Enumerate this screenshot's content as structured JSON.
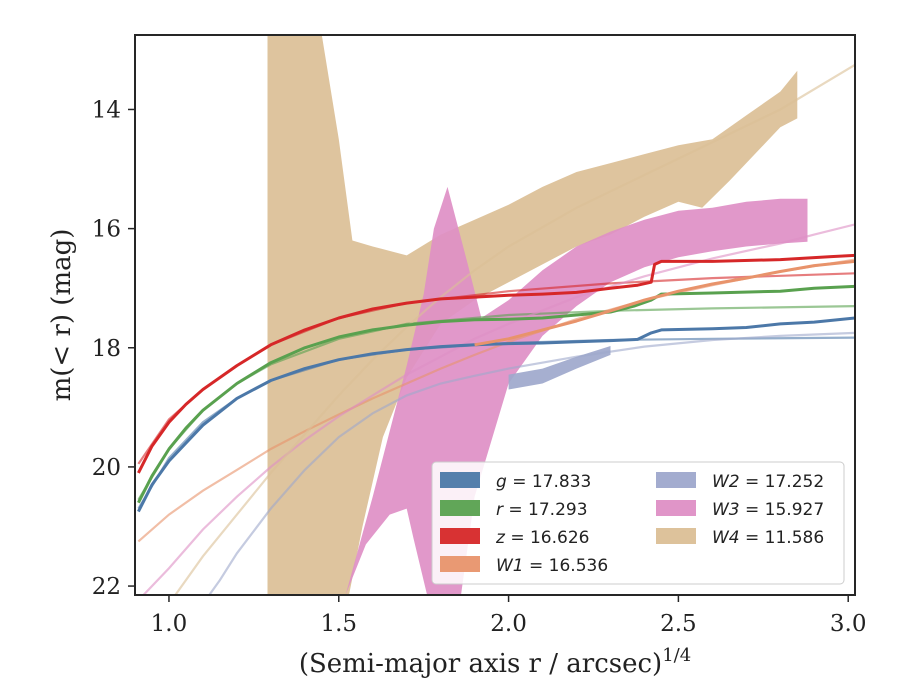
{
  "chart_data": {
    "type": "line",
    "xlabel": "(Semi-major axis r / arcsec)",
    "xlabel_exponent": "1/4",
    "ylabel": "m(< r) (mag)",
    "xlim": [
      0.9,
      3.02
    ],
    "ylim": [
      22.15,
      12.75
    ],
    "y_inverted": true,
    "x_ticks": [
      1.0,
      1.5,
      2.0,
      2.5,
      3.0
    ],
    "x_tick_labels": [
      "1.0",
      "1.5",
      "2.0",
      "2.5",
      "3.0"
    ],
    "y_ticks": [
      14,
      16,
      18,
      20,
      22
    ],
    "y_tick_labels": [
      "14",
      "16",
      "18",
      "20",
      "22"
    ],
    "grid": false,
    "legend_position": "lower-right",
    "series": [
      {
        "key": "g",
        "band": "g",
        "mag": "17.833",
        "color": "#4c78a8",
        "data": [
          [
            0.91,
            20.75
          ],
          [
            0.95,
            20.3
          ],
          [
            1.0,
            19.9
          ],
          [
            1.05,
            19.6
          ],
          [
            1.1,
            19.3
          ],
          [
            1.2,
            18.85
          ],
          [
            1.3,
            18.55
          ],
          [
            1.4,
            18.35
          ],
          [
            1.5,
            18.2
          ],
          [
            1.6,
            18.1
          ],
          [
            1.7,
            18.03
          ],
          [
            1.8,
            17.98
          ],
          [
            1.9,
            17.95
          ],
          [
            2.0,
            17.93
          ],
          [
            2.1,
            17.92
          ],
          [
            2.2,
            17.9
          ],
          [
            2.3,
            17.88
          ],
          [
            2.38,
            17.86
          ],
          [
            2.42,
            17.75
          ],
          [
            2.45,
            17.7
          ],
          [
            2.6,
            17.68
          ],
          [
            2.7,
            17.66
          ],
          [
            2.8,
            17.6
          ],
          [
            2.9,
            17.57
          ],
          [
            3.02,
            17.5
          ]
        ],
        "model": [
          [
            0.91,
            20.7
          ],
          [
            1.0,
            19.85
          ],
          [
            1.1,
            19.25
          ],
          [
            1.2,
            18.85
          ],
          [
            1.3,
            18.55
          ],
          [
            1.5,
            18.2
          ],
          [
            1.7,
            18.03
          ],
          [
            2.0,
            17.92
          ],
          [
            2.3,
            17.87
          ],
          [
            2.6,
            17.85
          ],
          [
            3.02,
            17.83
          ]
        ]
      },
      {
        "key": "r",
        "band": "r",
        "mag": "17.293",
        "color": "#59a14f",
        "data": [
          [
            0.91,
            20.6
          ],
          [
            0.95,
            20.15
          ],
          [
            1.0,
            19.7
          ],
          [
            1.05,
            19.35
          ],
          [
            1.1,
            19.05
          ],
          [
            1.2,
            18.6
          ],
          [
            1.3,
            18.25
          ],
          [
            1.4,
            18.0
          ],
          [
            1.5,
            17.82
          ],
          [
            1.6,
            17.7
          ],
          [
            1.7,
            17.62
          ],
          [
            1.8,
            17.56
          ],
          [
            1.9,
            17.53
          ],
          [
            2.0,
            17.52
          ],
          [
            2.1,
            17.5
          ],
          [
            2.2,
            17.45
          ],
          [
            2.3,
            17.4
          ],
          [
            2.37,
            17.3
          ],
          [
            2.42,
            17.2
          ],
          [
            2.45,
            17.1
          ],
          [
            2.6,
            17.08
          ],
          [
            2.8,
            17.05
          ],
          [
            2.9,
            17.0
          ],
          [
            3.02,
            16.97
          ]
        ],
        "model": [
          [
            0.91,
            20.55
          ],
          [
            1.0,
            19.7
          ],
          [
            1.1,
            19.05
          ],
          [
            1.2,
            18.6
          ],
          [
            1.3,
            18.28
          ],
          [
            1.5,
            17.85
          ],
          [
            1.7,
            17.6
          ],
          [
            2.0,
            17.45
          ],
          [
            2.3,
            17.38
          ],
          [
            2.6,
            17.34
          ],
          [
            3.02,
            17.3
          ]
        ]
      },
      {
        "key": "z",
        "band": "z",
        "mag": "16.626",
        "color": "#d62728",
        "data": [
          [
            0.91,
            20.1
          ],
          [
            0.95,
            19.65
          ],
          [
            1.0,
            19.25
          ],
          [
            1.05,
            18.95
          ],
          [
            1.1,
            18.7
          ],
          [
            1.2,
            18.3
          ],
          [
            1.3,
            17.95
          ],
          [
            1.4,
            17.7
          ],
          [
            1.5,
            17.5
          ],
          [
            1.6,
            17.35
          ],
          [
            1.7,
            17.25
          ],
          [
            1.8,
            17.18
          ],
          [
            1.9,
            17.15
          ],
          [
            2.0,
            17.12
          ],
          [
            2.1,
            17.1
          ],
          [
            2.2,
            17.07
          ],
          [
            2.3,
            17.0
          ],
          [
            2.38,
            16.95
          ],
          [
            2.42,
            16.9
          ],
          [
            2.43,
            16.6
          ],
          [
            2.45,
            16.55
          ],
          [
            2.6,
            16.55
          ],
          [
            2.8,
            16.52
          ],
          [
            2.95,
            16.47
          ],
          [
            3.02,
            16.45
          ]
        ],
        "model": [
          [
            0.91,
            19.95
          ],
          [
            1.0,
            19.2
          ],
          [
            1.1,
            18.7
          ],
          [
            1.2,
            18.3
          ],
          [
            1.3,
            17.95
          ],
          [
            1.5,
            17.5
          ],
          [
            1.7,
            17.25
          ],
          [
            2.0,
            17.05
          ],
          [
            2.3,
            16.92
          ],
          [
            2.6,
            16.83
          ],
          [
            3.02,
            16.75
          ]
        ]
      },
      {
        "key": "W1",
        "band": "W1",
        "mag": "16.536",
        "color": "#e8936b",
        "data": [
          [
            1.9,
            17.95
          ],
          [
            2.0,
            17.85
          ],
          [
            2.1,
            17.7
          ],
          [
            2.2,
            17.55
          ],
          [
            2.3,
            17.38
          ],
          [
            2.4,
            17.2
          ],
          [
            2.5,
            17.05
          ],
          [
            2.6,
            16.93
          ],
          [
            2.7,
            16.83
          ],
          [
            2.8,
            16.72
          ],
          [
            2.9,
            16.62
          ],
          [
            3.02,
            16.55
          ]
        ],
        "model": [
          [
            0.91,
            21.25
          ],
          [
            1.0,
            20.8
          ],
          [
            1.1,
            20.4
          ],
          [
            1.2,
            20.05
          ],
          [
            1.3,
            19.7
          ],
          [
            1.4,
            19.4
          ],
          [
            1.5,
            19.12
          ],
          [
            1.6,
            18.85
          ],
          [
            1.7,
            18.6
          ],
          [
            1.8,
            18.35
          ],
          [
            1.9,
            18.12
          ],
          [
            2.0,
            17.9
          ],
          [
            2.2,
            17.52
          ],
          [
            2.4,
            17.2
          ],
          [
            2.6,
            16.95
          ],
          [
            2.8,
            16.72
          ],
          [
            3.02,
            16.52
          ]
        ]
      },
      {
        "key": "W2",
        "band": "W2",
        "mag": "17.252",
        "color": "#9ea8cc",
        "band_upper": [
          [
            2.0,
            18.45
          ],
          [
            2.1,
            18.35
          ],
          [
            2.2,
            18.15
          ],
          [
            2.3,
            17.97
          ]
        ],
        "band_lower": [
          [
            2.0,
            18.7
          ],
          [
            2.1,
            18.6
          ],
          [
            2.2,
            18.35
          ],
          [
            2.3,
            18.12
          ]
        ],
        "model": [
          [
            1.1,
            22.3
          ],
          [
            1.15,
            21.9
          ],
          [
            1.2,
            21.45
          ],
          [
            1.3,
            20.7
          ],
          [
            1.4,
            20.05
          ],
          [
            1.5,
            19.5
          ],
          [
            1.6,
            19.1
          ],
          [
            1.7,
            18.8
          ],
          [
            1.8,
            18.6
          ],
          [
            1.9,
            18.47
          ],
          [
            2.0,
            18.35
          ],
          [
            2.2,
            18.15
          ],
          [
            2.4,
            17.98
          ],
          [
            2.6,
            17.87
          ],
          [
            2.8,
            17.8
          ],
          [
            3.02,
            17.75
          ]
        ]
      },
      {
        "key": "W3",
        "band": "W3",
        "mag": "15.927",
        "color": "#de8fc5",
        "band_upper": [
          [
            1.52,
            22.15
          ],
          [
            1.6,
            20.5
          ],
          [
            1.7,
            18.3
          ],
          [
            1.75,
            17.1
          ],
          [
            1.78,
            16.0
          ],
          [
            1.82,
            15.3
          ],
          [
            1.88,
            16.6
          ],
          [
            1.92,
            17.5
          ],
          [
            2.0,
            17.2
          ],
          [
            2.1,
            16.7
          ],
          [
            2.2,
            16.3
          ],
          [
            2.3,
            16.05
          ],
          [
            2.4,
            15.85
          ],
          [
            2.5,
            15.7
          ],
          [
            2.6,
            15.65
          ],
          [
            2.7,
            15.55
          ],
          [
            2.8,
            15.5
          ],
          [
            2.88,
            15.5
          ]
        ],
        "band_lower": [
          [
            1.52,
            22.15
          ],
          [
            1.58,
            21.3
          ],
          [
            1.65,
            20.8
          ],
          [
            1.7,
            20.7
          ],
          [
            1.72,
            21.2
          ],
          [
            1.76,
            22.15
          ],
          [
            1.86,
            22.15
          ],
          [
            1.9,
            20.5
          ],
          [
            2.0,
            18.6
          ],
          [
            2.1,
            17.8
          ],
          [
            2.2,
            17.3
          ],
          [
            2.3,
            16.9
          ],
          [
            2.4,
            16.65
          ],
          [
            2.5,
            16.48
          ],
          [
            2.6,
            16.38
          ],
          [
            2.7,
            16.3
          ],
          [
            2.8,
            16.25
          ],
          [
            2.88,
            16.22
          ]
        ],
        "model": [
          [
            0.9,
            22.3
          ],
          [
            1.0,
            21.7
          ],
          [
            1.1,
            21.05
          ],
          [
            1.2,
            20.5
          ],
          [
            1.3,
            20.0
          ],
          [
            1.4,
            19.55
          ],
          [
            1.5,
            19.15
          ],
          [
            1.6,
            18.8
          ],
          [
            1.7,
            18.45
          ],
          [
            1.8,
            18.15
          ],
          [
            1.9,
            17.85
          ],
          [
            2.0,
            17.6
          ],
          [
            2.2,
            17.15
          ],
          [
            2.4,
            16.8
          ],
          [
            2.6,
            16.5
          ],
          [
            2.8,
            16.25
          ],
          [
            2.9,
            16.1
          ],
          [
            3.02,
            15.93
          ]
        ]
      },
      {
        "key": "W4",
        "band": "W4",
        "mag": "11.586",
        "color": "#dbbf96",
        "band_upper": [
          [
            1.29,
            12.75
          ],
          [
            1.45,
            12.75
          ],
          [
            1.5,
            14.5
          ],
          [
            1.54,
            16.2
          ],
          [
            1.6,
            16.3
          ],
          [
            1.7,
            16.45
          ],
          [
            1.8,
            16.1
          ],
          [
            1.9,
            15.85
          ],
          [
            2.0,
            15.6
          ],
          [
            2.1,
            15.3
          ],
          [
            2.2,
            15.05
          ],
          [
            2.3,
            14.9
          ],
          [
            2.4,
            14.75
          ],
          [
            2.5,
            14.6
          ],
          [
            2.6,
            14.5
          ],
          [
            2.7,
            14.1
          ],
          [
            2.8,
            13.7
          ],
          [
            2.85,
            13.35
          ]
        ],
        "band_lower": [
          [
            1.29,
            22.15
          ],
          [
            1.53,
            22.15
          ],
          [
            1.57,
            21.0
          ],
          [
            1.63,
            19.5
          ],
          [
            1.7,
            18.5
          ],
          [
            1.8,
            17.6
          ],
          [
            1.9,
            17.2
          ],
          [
            2.0,
            16.9
          ],
          [
            2.1,
            16.6
          ],
          [
            2.2,
            16.3
          ],
          [
            2.3,
            16.1
          ],
          [
            2.4,
            15.8
          ],
          [
            2.5,
            15.55
          ],
          [
            2.57,
            15.65
          ],
          [
            2.65,
            15.2
          ],
          [
            2.7,
            14.9
          ],
          [
            2.8,
            14.3
          ],
          [
            2.85,
            14.15
          ]
        ],
        "model": [
          [
            1.0,
            22.3
          ],
          [
            1.1,
            21.5
          ],
          [
            1.2,
            20.8
          ],
          [
            1.3,
            20.1
          ],
          [
            1.4,
            19.45
          ],
          [
            1.5,
            18.8
          ],
          [
            1.6,
            18.2
          ],
          [
            1.7,
            17.65
          ],
          [
            1.8,
            17.15
          ],
          [
            1.9,
            16.7
          ],
          [
            2.0,
            16.3
          ],
          [
            2.2,
            15.65
          ],
          [
            2.4,
            15.1
          ],
          [
            2.6,
            14.55
          ],
          [
            2.8,
            14.0
          ],
          [
            3.02,
            13.25
          ]
        ]
      }
    ]
  }
}
